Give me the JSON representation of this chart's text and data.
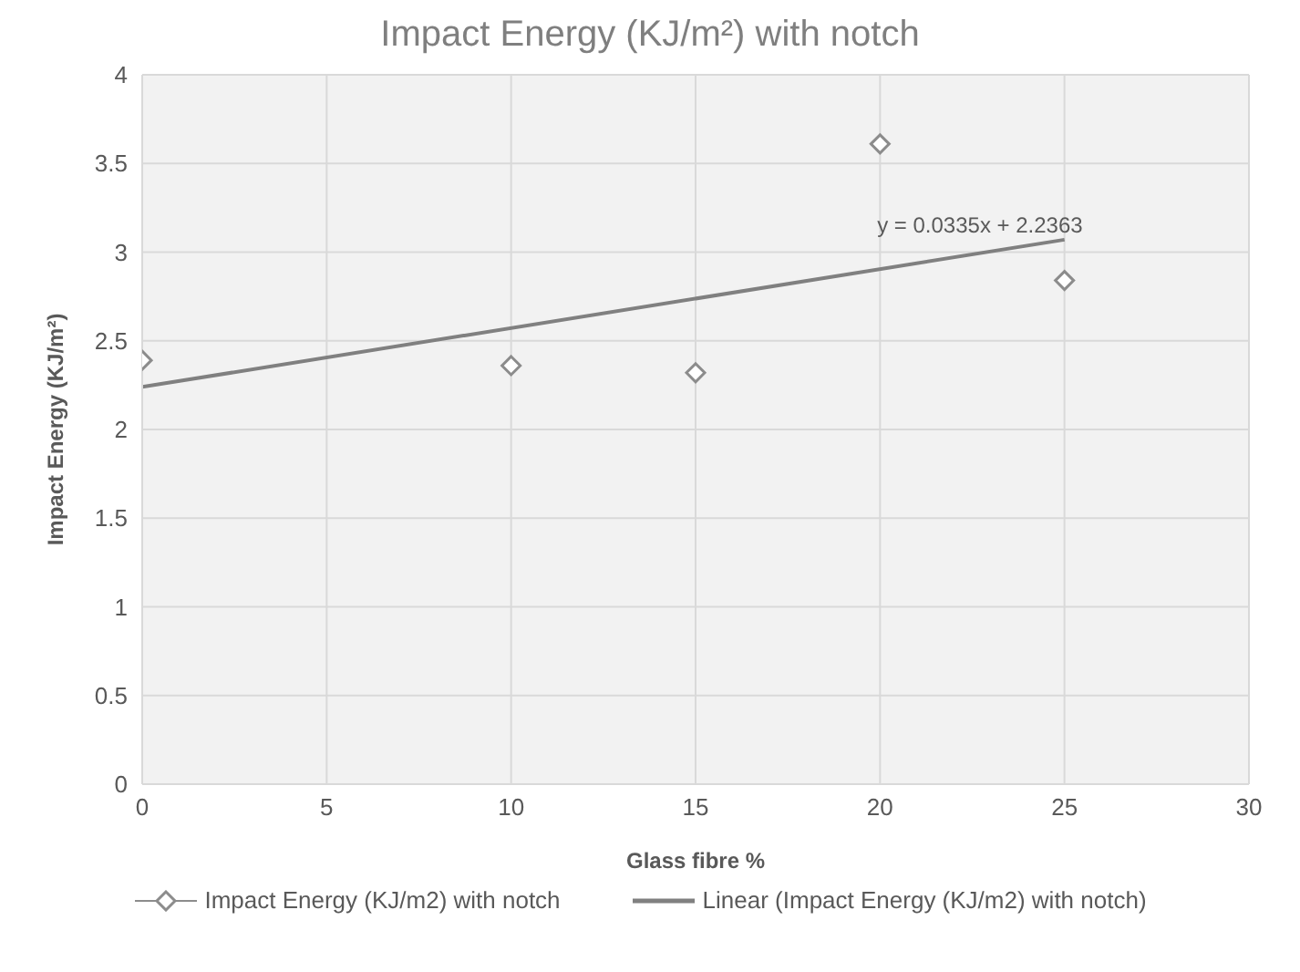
{
  "chart_data": {
    "type": "scatter",
    "title": "Impact Energy (KJ/m²)  with notch",
    "xlabel": "Glass fibre %",
    "ylabel": "Impact Energy (KJ/m²)",
    "x": [
      0,
      10,
      15,
      20,
      25
    ],
    "series": [
      {
        "name": "Impact Energy (KJ/m2)  with notch",
        "color": "#8c8c8c",
        "values": [
          2.39,
          2.36,
          2.32,
          3.61,
          2.84
        ],
        "marker": "diamond"
      },
      {
        "name": "Linear (Impact Energy (KJ/m2)  with notch)",
        "type": "line",
        "color": "#808080",
        "x": [
          0,
          25
        ],
        "values": [
          2.24,
          3.07
        ],
        "marker": "none",
        "line_style": "solid"
      }
    ],
    "annotations": [
      "y = 0.0335x + 2.2363"
    ],
    "xlim": [
      0,
      30
    ],
    "xticks": [
      0,
      5,
      10,
      15,
      20,
      25,
      30
    ],
    "ylim": [
      0,
      4
    ],
    "yticks": [
      0,
      0.5,
      1,
      1.5,
      2,
      2.5,
      3,
      3.5,
      4
    ],
    "grid": true,
    "legend": "bottom"
  }
}
